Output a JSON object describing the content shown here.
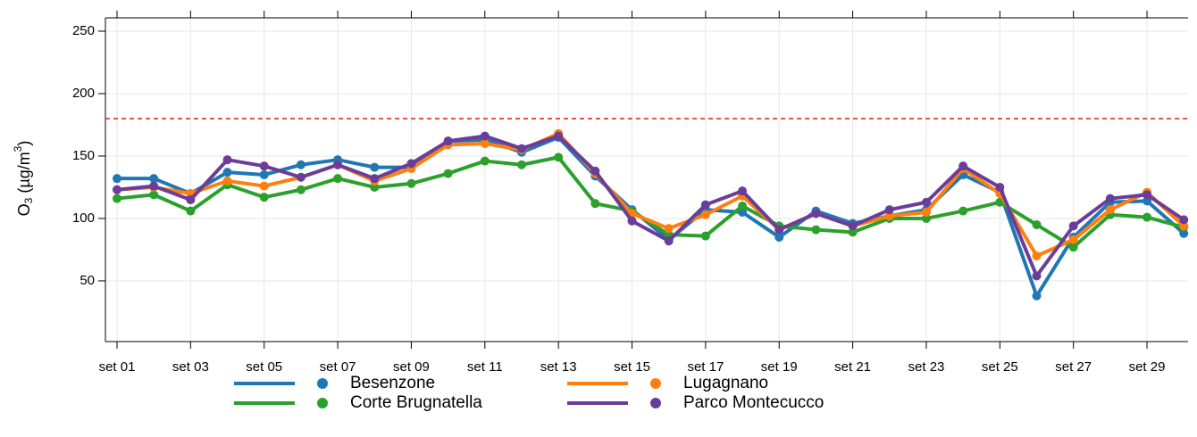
{
  "chart_data": {
    "type": "line",
    "y_label": {
      "parts": [
        "O",
        "3",
        " (µg/m",
        "3",
        ")"
      ]
    },
    "categories": [
      "set 01",
      null,
      "set 03",
      null,
      "set 05",
      null,
      "set 07",
      null,
      "set 09",
      null,
      "set 11",
      null,
      "set 13",
      null,
      "set 15",
      null,
      "set 17",
      null,
      "set 19",
      null,
      "set 21",
      null,
      "set 23",
      null,
      "set 25",
      null,
      "set 27",
      null,
      "set 29",
      null
    ],
    "series": [
      {
        "name": "Besenzone",
        "color": "#1f77b4",
        "values": [
          132,
          132,
          120,
          137,
          135,
          143,
          147,
          141,
          141,
          162,
          163,
          153,
          165,
          134,
          107,
          83,
          107,
          105,
          85,
          106,
          96,
          102,
          107,
          135,
          121,
          38,
          85,
          113,
          114,
          88
        ]
      },
      {
        "name": "Corte Brugnatella",
        "color": "#2ca02c",
        "values": [
          116,
          119,
          106,
          127,
          117,
          123,
          132,
          125,
          128,
          136,
          146,
          143,
          149,
          112,
          106,
          87,
          86,
          110,
          94,
          91,
          89,
          100,
          100,
          106,
          113,
          95,
          77,
          103,
          101,
          93
        ]
      },
      {
        "name": "Lugagnano",
        "color": "#ff7f0e",
        "values": [
          123,
          125,
          120,
          130,
          126,
          133,
          143,
          130,
          140,
          159,
          160,
          155,
          168,
          136,
          104,
          92,
          103,
          118,
          91,
          104,
          94,
          102,
          105,
          140,
          120,
          70,
          83,
          107,
          121,
          94
        ]
      },
      {
        "name": "Parco Montecucco",
        "color": "#6a3d9a",
        "values": [
          123,
          126,
          115,
          147,
          142,
          133,
          143,
          132,
          144,
          162,
          166,
          156,
          166,
          138,
          98,
          82,
          111,
          122,
          91,
          104,
          94,
          107,
          113,
          142,
          125,
          54,
          94,
          116,
          119,
          99
        ]
      }
    ],
    "threshold": {
      "value": 180,
      "color": "#e31a1c"
    },
    "ylim": [
      1.4,
      260.7
    ],
    "yticks": [
      50,
      100,
      150,
      200,
      250
    ],
    "grid": true
  }
}
